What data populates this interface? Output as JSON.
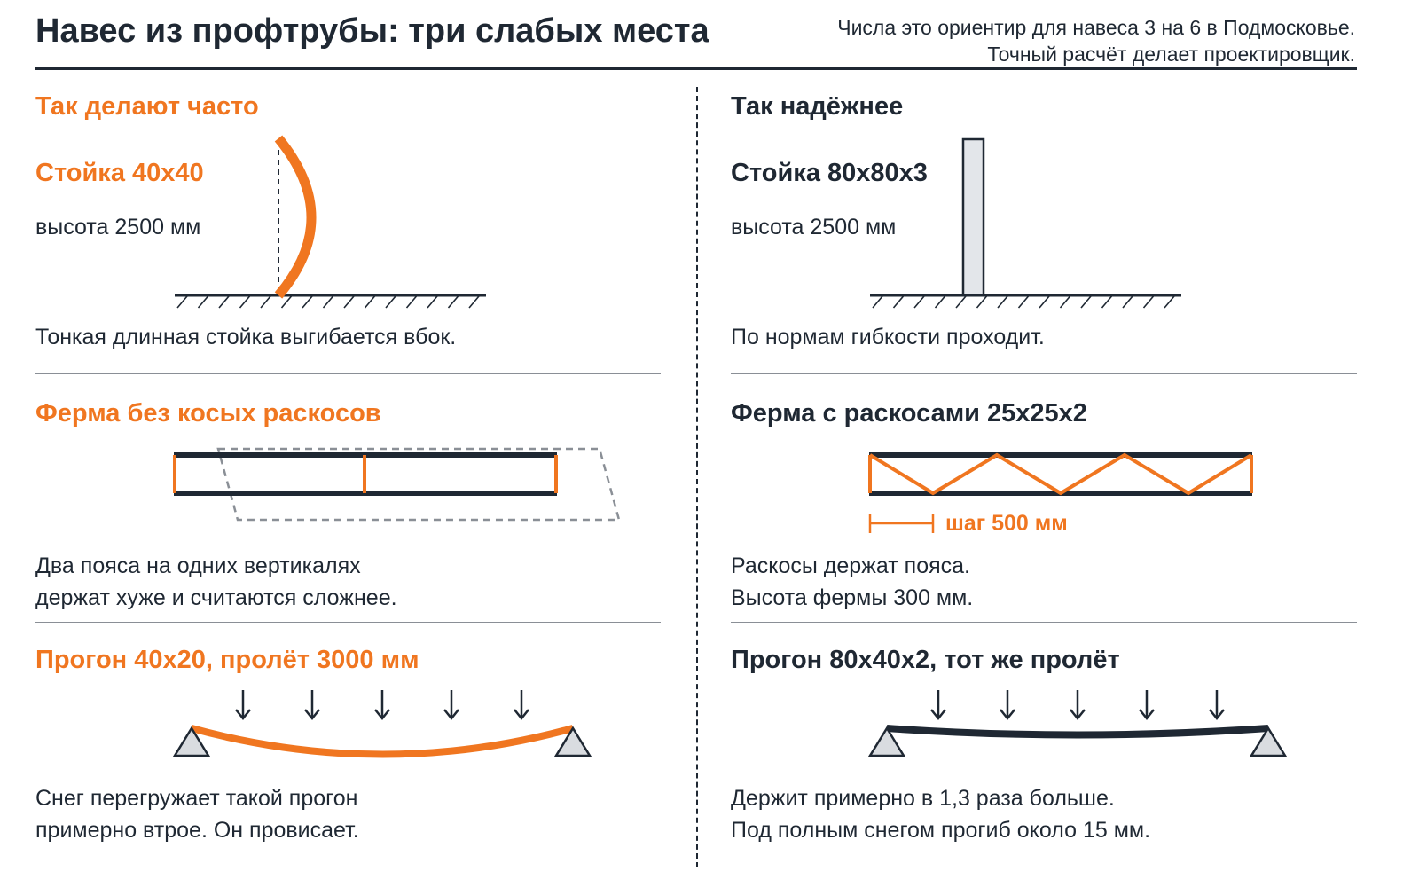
{
  "header": {
    "title": "Навес из профтрубы: три слабых места",
    "note_line1": "Числа это ориентир для навеса 3 на 6 в Подмосковье.",
    "note_line2": "Точный расчёт делает проектировщик."
  },
  "colors": {
    "accent": "#f07620",
    "dark": "#1f2833",
    "support_fill": "#d9dce0",
    "rule": "#8a8f96"
  },
  "left": {
    "column_title": "Так делают часто",
    "post": {
      "label": "Стойка 40x40",
      "height_text": "высота 2500 мм",
      "caption": "Тонкая длинная стойка выгибается вбок."
    },
    "truss": {
      "label": "Ферма без косых раскосов",
      "caption_line1": "Два пояса на одних вертикалях",
      "caption_line2": "держат хуже и считаются сложнее."
    },
    "purlin": {
      "label": "Прогон 40x20, пролёт 3000 мм",
      "caption_line1": "Снег перегружает такой прогон",
      "caption_line2": "примерно втрое. Он провисает."
    }
  },
  "right": {
    "column_title": "Так надёжнее",
    "post": {
      "label": "Стойка 80x80x3",
      "height_text": "высота 2500 мм",
      "caption": "По нормам гибкости проходит."
    },
    "truss": {
      "label": "Ферма с раскосами 25x25x2",
      "step_label": "шаг 500 мм",
      "caption_line1": "Раскосы держат пояса.",
      "caption_line2": "Высота фермы 300 мм."
    },
    "purlin": {
      "label": "Прогон 80x40x2, тот же пролёт",
      "caption_line1": "Держит примерно в 1,3 раза больше.",
      "caption_line2": "Под полным снегом прогиб около 15 мм."
    }
  }
}
